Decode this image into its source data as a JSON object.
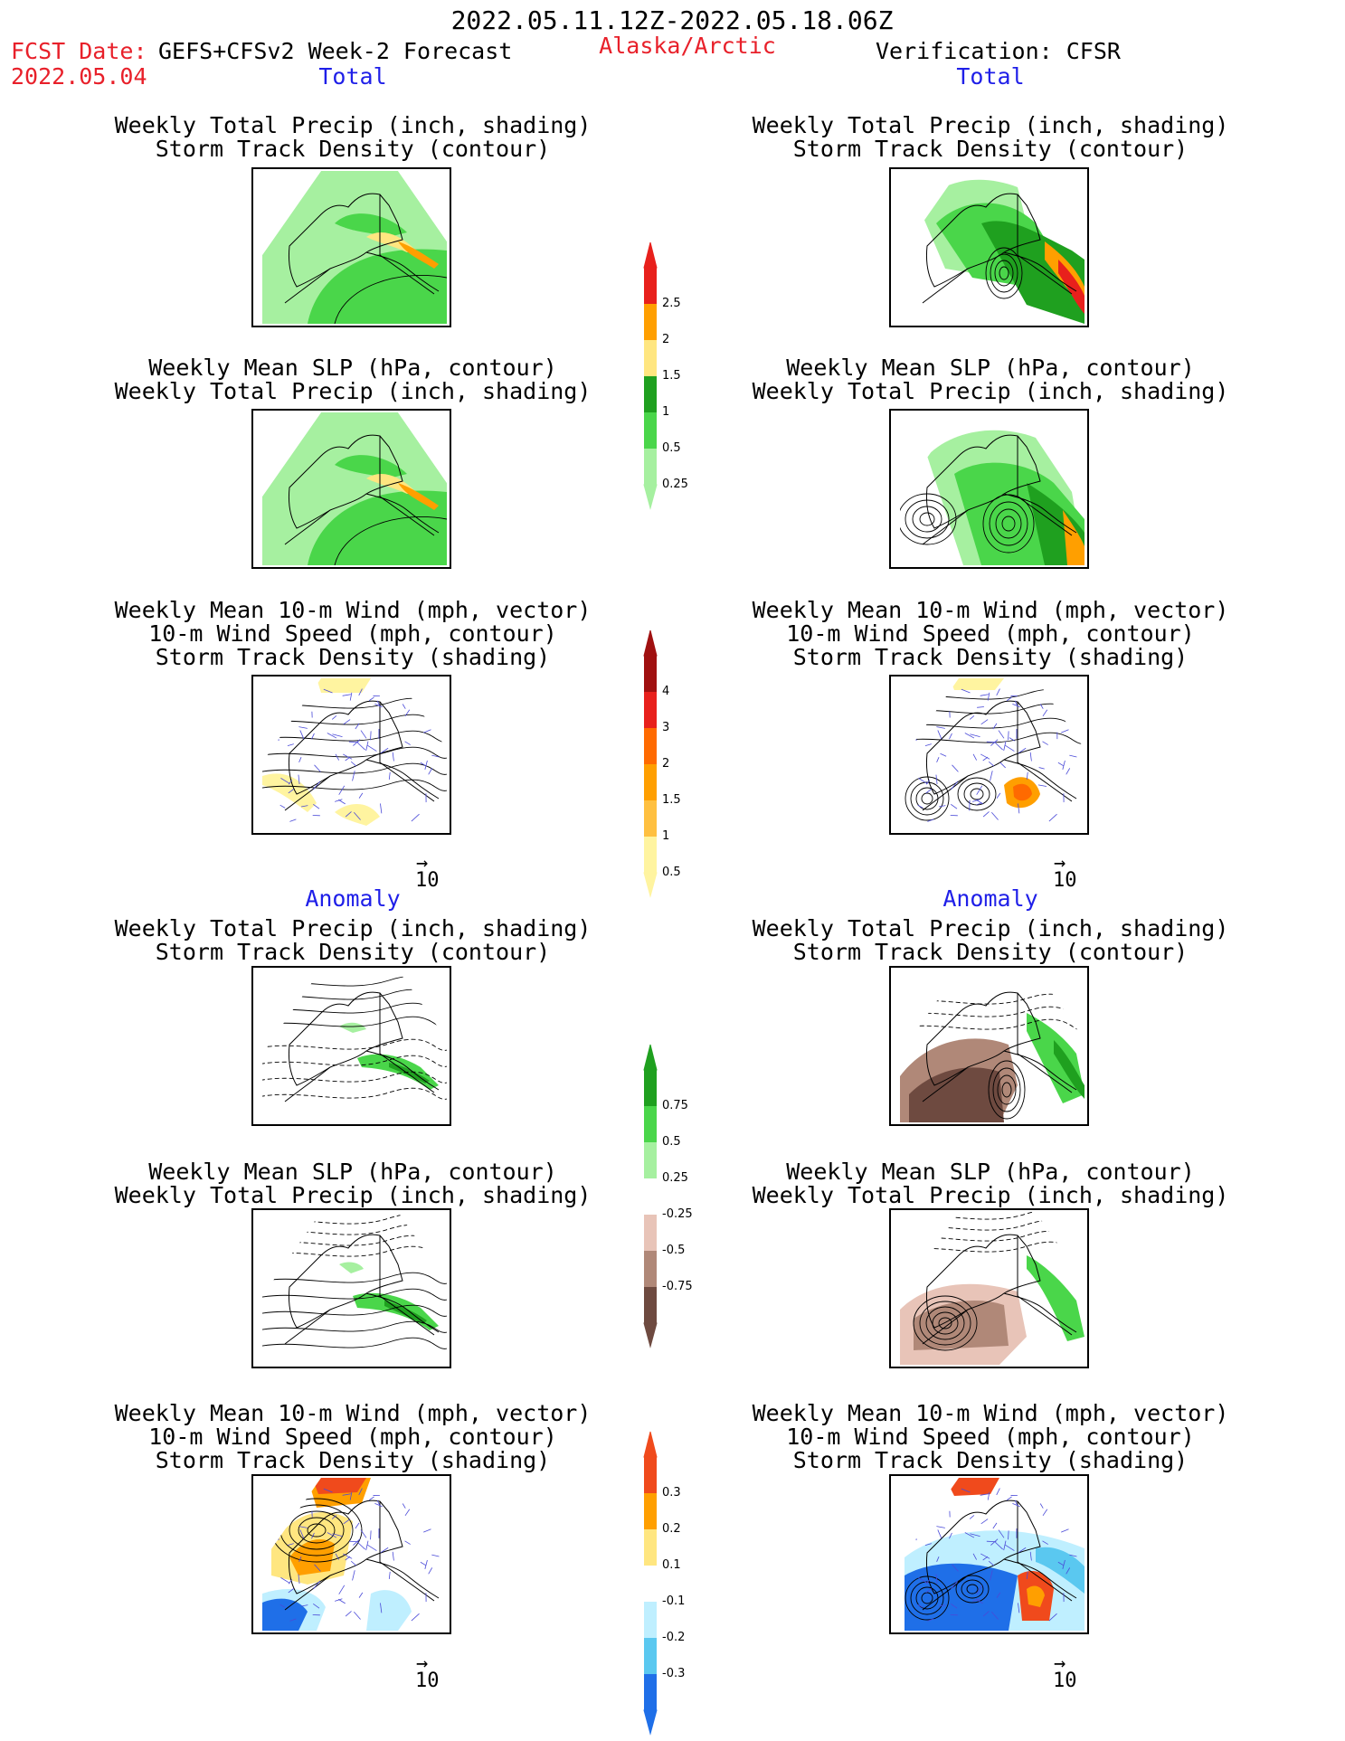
{
  "header": {
    "date_range": "2022.05.11.12Z-2022.05.18.06Z",
    "fcst_date_label": "FCST Date:",
    "forecast_model": "GEFS+CFSv2 Week-2 Forecast",
    "region": "Alaska/Arctic",
    "verification": "Verification: CFSR",
    "fcst_date": "2022.05.04"
  },
  "sections": {
    "total": "Total",
    "anomaly": "Anomaly"
  },
  "panel_titles": {
    "precip_track": [
      "Weekly Total Precip (inch, shading)",
      "Storm Track Density (contour)"
    ],
    "slp_precip": [
      "Weekly Mean SLP (hPa, contour)",
      "Weekly Total Precip (inch, shading)"
    ],
    "wind_track": [
      "Weekly Mean 10-m Wind (mph, vector)",
      "10-m Wind Speed (mph, contour)",
      "Storm Track Density (shading)"
    ]
  },
  "vector_reference": "10",
  "colorbars": {
    "precip_total": {
      "labels": [
        "2.5",
        "2",
        "1.5",
        "1",
        "0.5",
        "0.25"
      ],
      "colors": [
        "#e8201c",
        "#ff9f00",
        "#ffe680",
        "#1fa01f",
        "#4ad64a",
        "#a6f0a0"
      ]
    },
    "track_total": {
      "labels": [
        "4",
        "3",
        "2",
        "1.5",
        "1",
        "0.5"
      ],
      "colors": [
        "#a01010",
        "#e8201c",
        "#ff6a00",
        "#ff9f00",
        "#ffc040",
        "#fff4a0"
      ]
    },
    "precip_anom": {
      "labels": [
        "0.75",
        "0.5",
        "0.25",
        "-0.25",
        "-0.5",
        "-0.75"
      ],
      "colors": [
        "#1fa01f",
        "#4ad64a",
        "#a6f0a0",
        "#ffffff",
        "#e8c4b8",
        "#b08878",
        "#6e4a40"
      ]
    },
    "track_anom": {
      "labels": [
        "0.3",
        "0.2",
        "0.1",
        "-0.1",
        "-0.2",
        "-0.3"
      ],
      "colors": [
        "#f04a1c",
        "#ff9f00",
        "#ffe680",
        "#ffffff",
        "#bfefff",
        "#5ac8f0",
        "#1f6fe8"
      ]
    }
  },
  "colors": {
    "header_red": "#e8202a",
    "section_blue": "#1f1fe8",
    "vector_blue": "#4a4ad8"
  }
}
